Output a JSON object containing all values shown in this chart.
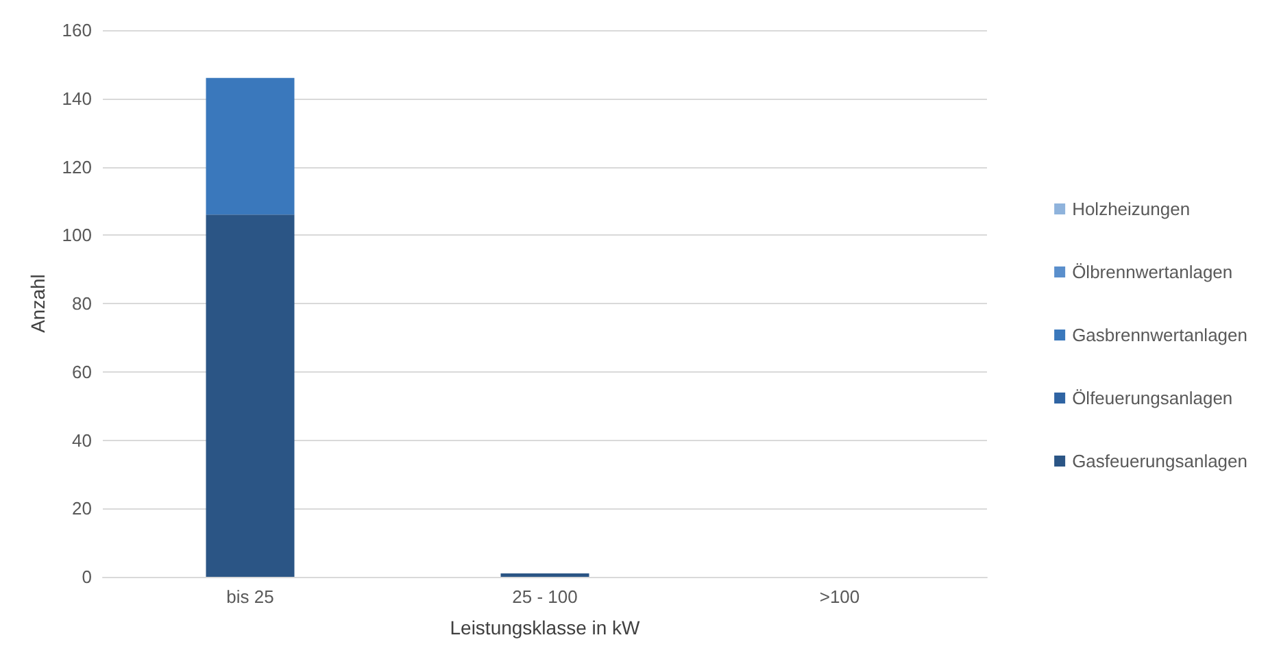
{
  "chart_data": {
    "type": "bar",
    "stacked": true,
    "xlabel": "Leistungsklasse in kW",
    "ylabel": "Anzahl",
    "categories": [
      "bis 25",
      "25 - 100",
      ">100"
    ],
    "series": [
      {
        "name": "Gasfeuerungsanlagen",
        "color": "#2b5585",
        "values": [
          106,
          1,
          0
        ]
      },
      {
        "name": "Ölfeuerungsanlagen",
        "color": "#2f64a3",
        "values": [
          0,
          0,
          0
        ]
      },
      {
        "name": "Gasbrennwertanlagen",
        "color": "#3a78bc",
        "values": [
          40,
          0,
          0
        ]
      },
      {
        "name": "Ölbrennwertanlagen",
        "color": "#5a8fcc",
        "values": [
          0,
          0,
          0
        ]
      },
      {
        "name": "Holzheizungen",
        "color": "#8fb3dc",
        "values": [
          0,
          0,
          0
        ]
      }
    ],
    "ylim": [
      0,
      160
    ],
    "yticks": [
      0,
      20,
      40,
      60,
      80,
      100,
      120,
      140,
      160
    ],
    "grid": "y",
    "legend": "right"
  }
}
